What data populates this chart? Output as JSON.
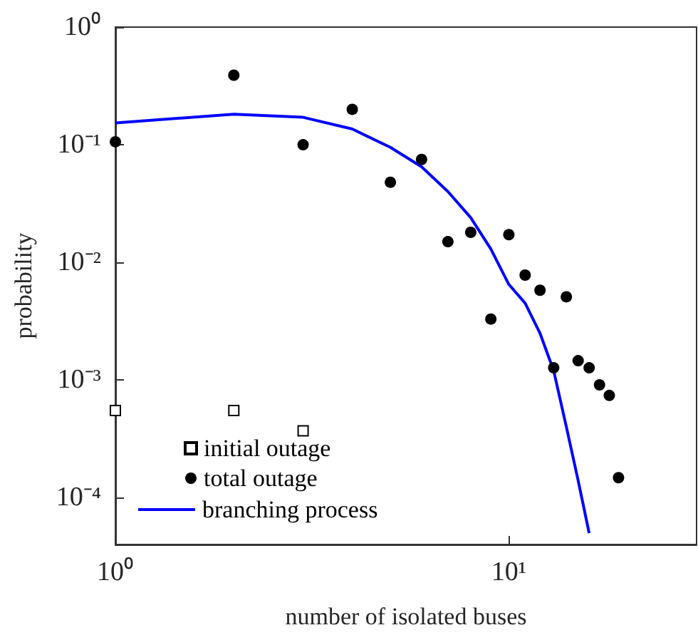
{
  "chart_data": {
    "type": "scatter",
    "xlabel": "number of isolated buses",
    "ylabel": "probability",
    "log": "xy",
    "grid": false,
    "legend": "bottom left",
    "xlim": [
      1,
      30
    ],
    "xticks": [
      {
        "value": 1,
        "label": "10⁰"
      },
      {
        "value": 10,
        "label": "10¹"
      }
    ],
    "ylim": [
      4e-05,
      1
    ],
    "yticks": [
      {
        "value": 0.0001,
        "label": "10⁻⁴"
      },
      {
        "value": 0.001,
        "label": "10⁻³"
      },
      {
        "value": 0.01,
        "label": "10⁻²"
      },
      {
        "value": 0.1,
        "label": "10⁻¹"
      },
      {
        "value": 1,
        "label": "10⁰"
      }
    ],
    "series": [
      {
        "name": "initial outage",
        "marker": "square",
        "color": "#000000",
        "x": [
          1,
          2,
          3
        ],
        "values": [
          0.00055,
          0.00055,
          0.00037
        ]
      },
      {
        "name": "total outage",
        "marker": "circle",
        "color": "#000000",
        "x": [
          1,
          2,
          3,
          4,
          5,
          6,
          7,
          8,
          9,
          10,
          11,
          12,
          13,
          14,
          15,
          16,
          17,
          18,
          19
        ],
        "values": [
          0.106,
          0.39,
          0.1,
          0.2,
          0.048,
          0.075,
          0.015,
          0.018,
          0.0033,
          0.0172,
          0.0078,
          0.0058,
          0.00127,
          0.0051,
          0.00146,
          0.00127,
          0.00091,
          0.00074,
          0.000148
        ]
      },
      {
        "name": "branching process",
        "type": "line",
        "marker": "none",
        "line_style": "solid",
        "color": "#0000ff",
        "x": [
          1,
          2,
          3,
          4,
          5,
          6,
          7,
          8,
          9,
          10,
          11,
          12,
          13,
          14,
          15,
          16
        ],
        "values": [
          0.153,
          0.182,
          0.171,
          0.136,
          0.095,
          0.065,
          0.04,
          0.024,
          0.013,
          0.0065,
          0.0045,
          0.0025,
          0.0012,
          0.0004,
          0.00014,
          5e-05
        ]
      }
    ]
  }
}
